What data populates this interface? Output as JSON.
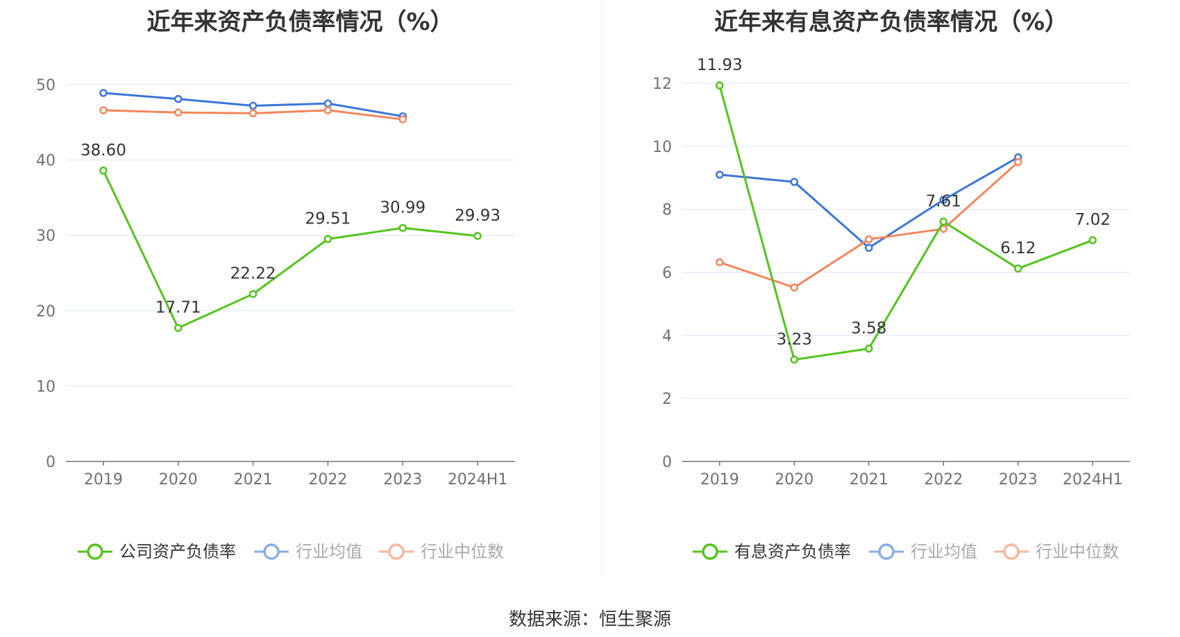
{
  "source": "数据来源：恒生聚源",
  "chart_data": [
    {
      "type": "line",
      "title": "近年来资产负债率情况（%）",
      "categories": [
        "2019",
        "2020",
        "2021",
        "2022",
        "2023",
        "2024H1"
      ],
      "ylim": [
        0,
        50
      ],
      "yticks": [
        0,
        10,
        20,
        30,
        40,
        50
      ],
      "grid": true,
      "legend_position": "bottom",
      "series": [
        {
          "name": "公司资产负债率",
          "color": "#52c41a",
          "values": [
            38.6,
            17.71,
            22.22,
            29.51,
            30.99,
            29.93
          ],
          "labels": [
            "38.60",
            "17.71",
            "22.22",
            "29.51",
            "30.99",
            "29.93"
          ]
        },
        {
          "name": "行业均值",
          "color": "#3a75d9",
          "values": [
            48.9,
            48.1,
            47.2,
            47.5,
            45.8,
            null
          ]
        },
        {
          "name": "行业中位数",
          "color": "#f5855b",
          "values": [
            46.6,
            46.3,
            46.2,
            46.6,
            45.4,
            null
          ]
        }
      ]
    },
    {
      "type": "line",
      "title": "近年来有息资产负债率情况（%）",
      "categories": [
        "2019",
        "2020",
        "2021",
        "2022",
        "2023",
        "2024H1"
      ],
      "ylim": [
        0,
        12
      ],
      "yticks": [
        0,
        2,
        4,
        6,
        8,
        10,
        12
      ],
      "grid": true,
      "legend_position": "bottom",
      "series": [
        {
          "name": "有息资产负债率",
          "color": "#52c41a",
          "values": [
            11.93,
            3.23,
            3.58,
            7.61,
            6.12,
            7.02
          ],
          "labels": [
            "11.93",
            "3.23",
            "3.58",
            "7.61",
            "6.12",
            "7.02"
          ]
        },
        {
          "name": "行业均值",
          "color": "#3a75d9",
          "values": [
            9.1,
            8.87,
            6.78,
            8.3,
            9.65,
            null
          ]
        },
        {
          "name": "行业中位数",
          "color": "#f5855b",
          "values": [
            6.32,
            5.52,
            7.05,
            7.38,
            9.5,
            null
          ]
        }
      ]
    }
  ]
}
